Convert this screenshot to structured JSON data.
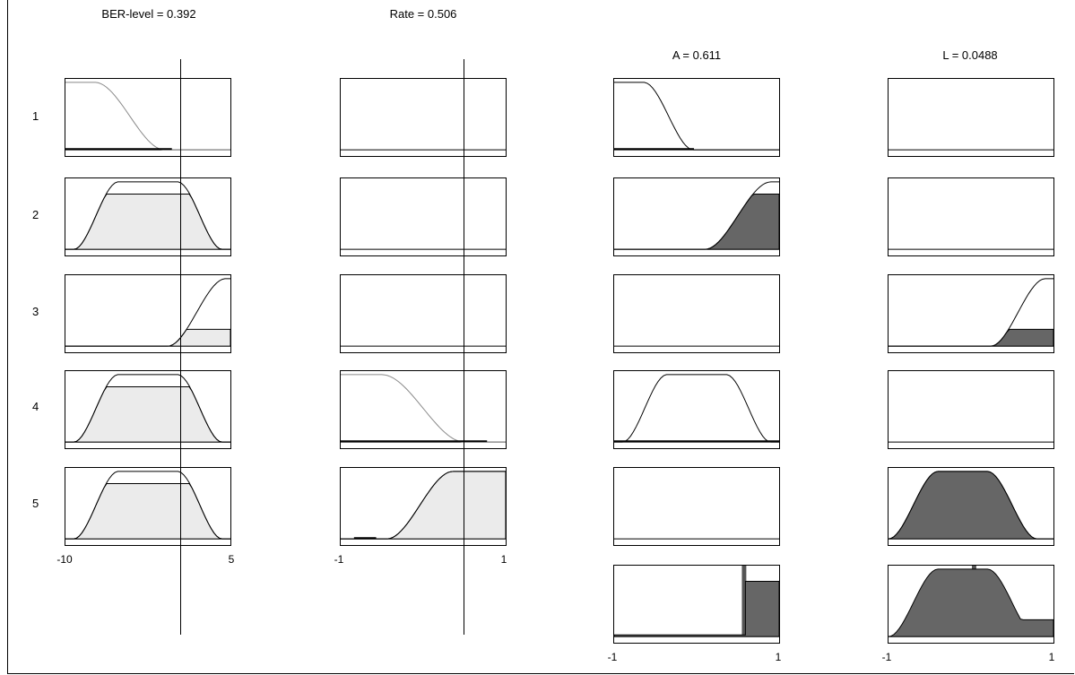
{
  "window": {
    "background": "#ffffff"
  },
  "columns": [
    {
      "title": "BER-level = 0.392",
      "axis_min_label": "-10",
      "axis_max_label": "5"
    },
    {
      "title": "Rate = 0.506",
      "axis_min_label": "-1",
      "axis_max_label": "1"
    },
    {
      "title": "A = 0.611",
      "axis_min_label": "-1",
      "axis_max_label": "1"
    },
    {
      "title": "L = 0.0488",
      "axis_min_label": "-1",
      "axis_max_label": "1"
    }
  ],
  "rows": [
    {
      "label": "1"
    },
    {
      "label": "2"
    },
    {
      "label": "3"
    },
    {
      "label": "4"
    },
    {
      "label": "5"
    }
  ],
  "colors": {
    "input_fill": "#ebebeb",
    "output_fill": "#666666",
    "line": "#000000",
    "curve_light": "#888888"
  }
}
